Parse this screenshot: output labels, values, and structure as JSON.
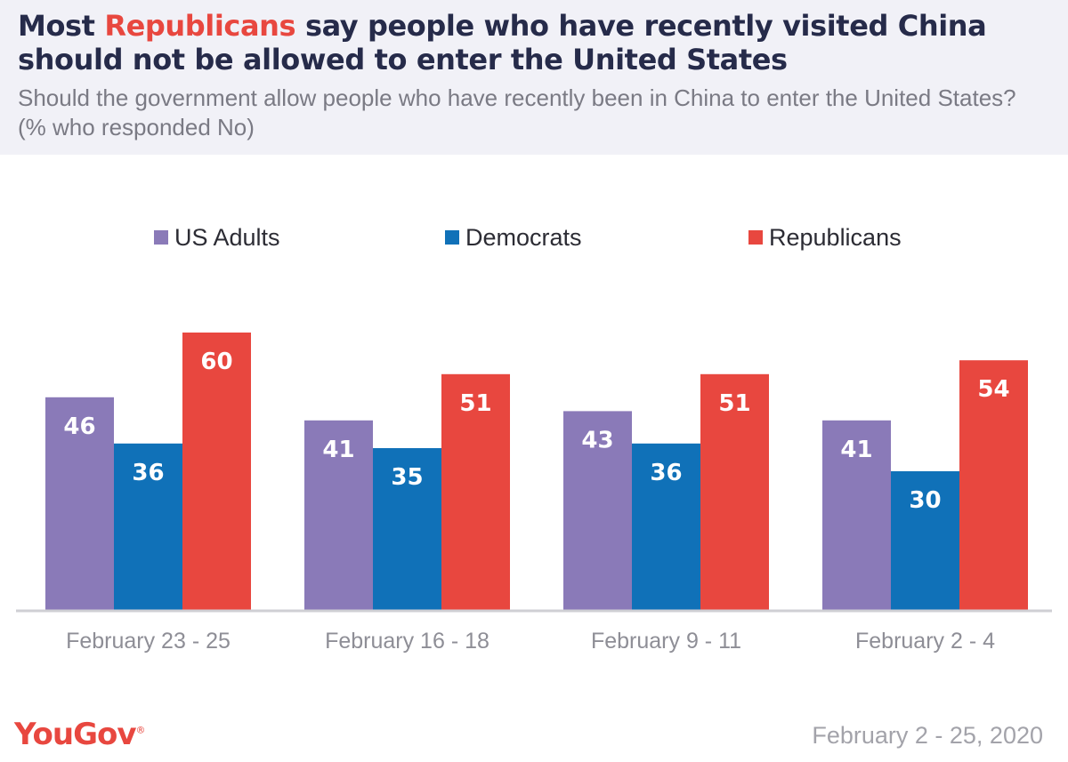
{
  "header": {
    "title_prefix": "Most ",
    "title_highlight": "Republicans",
    "title_suffix": " say people who have recently visited China should not be allowed to enter the United States",
    "subtitle": "Should the government allow people who have recently been in China to enter the United States? (% who responded No)"
  },
  "chart_data": {
    "type": "bar",
    "categories": [
      "February 23 - 25",
      "February 16 - 18",
      "February 9 - 11",
      "February 2 - 4"
    ],
    "series": [
      {
        "name": "US Adults",
        "color": "#8a7ab8",
        "values": [
          46,
          41,
          43,
          41
        ]
      },
      {
        "name": "Democrats",
        "color": "#1071b8",
        "values": [
          36,
          35,
          36,
          30
        ]
      },
      {
        "name": "Republicans",
        "color": "#e8473f",
        "values": [
          60,
          51,
          51,
          54
        ]
      }
    ],
    "ylim": [
      0,
      60
    ],
    "grid": false,
    "legend_position": "top",
    "data_labels": true
  },
  "footer": {
    "logo": "YouGov",
    "logo_mark": "®",
    "date_range": "February 2 - 25, 2020"
  },
  "colors": {
    "accent": "#e8473f",
    "title": "#262b4a",
    "header_bg": "#f1f1f7"
  }
}
